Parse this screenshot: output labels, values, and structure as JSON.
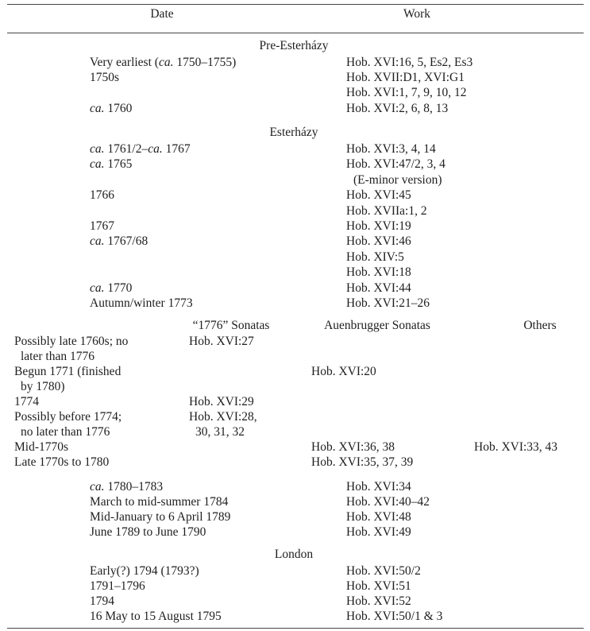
{
  "header": {
    "date": "Date",
    "work": "Work"
  },
  "sections": [
    {
      "title": "Pre-Esterházy",
      "rows": [
        [
          "Very earliest (ca. 1750–1755)",
          "Hob. XVI:16, 5, Es2, Es3"
        ],
        [
          "1750s",
          "Hob. XVII:D1, XVI:G1"
        ],
        [
          "",
          "Hob. XVI:1, 7, 9, 10, 12"
        ],
        [
          "ca. 1760",
          "Hob. XVI:2, 6, 8, 13"
        ]
      ]
    },
    {
      "title": "Esterházy",
      "rows": [
        [
          "ca. 1761/2–ca. 1767",
          "Hob. XVI:3, 4, 14"
        ],
        [
          "ca. 1765",
          "Hob. XVI:47/2, 3, 4"
        ],
        [
          "",
          "(E-minor version)"
        ],
        [
          "1766",
          "Hob. XVI:45"
        ],
        [
          "",
          "Hob. XVIIa:1, 2"
        ],
        [
          "1767",
          "Hob. XVI:19"
        ],
        [
          "ca. 1767/68",
          "Hob. XVI:46"
        ],
        [
          "",
          "Hob. XIV:5"
        ],
        [
          "",
          "Hob. XVI:18"
        ],
        [
          "ca. 1770",
          "Hob. XVI:44"
        ],
        [
          "Autumn/winter 1773",
          "Hob. XVI:21–26"
        ]
      ]
    }
  ],
  "subtable": {
    "headers": [
      "“1776” Sonatas",
      "Auenbrugger Sonatas",
      "Others"
    ],
    "rows": [
      [
        "Possibly late 1760s; no",
        "Hob. XVI:27",
        "",
        ""
      ],
      [
        "later than 1776",
        "",
        "",
        ""
      ],
      [
        "Begun 1771 (finished",
        "",
        "Hob. XVI:20",
        ""
      ],
      [
        "by 1780)",
        "",
        "",
        ""
      ],
      [
        "1774",
        "Hob. XVI:29",
        "",
        ""
      ],
      [
        "Possibly before 1774;",
        "Hob. XVI:28,",
        "",
        ""
      ],
      [
        "no later than 1776",
        "30, 31, 32",
        "",
        ""
      ],
      [
        "Mid-1770s",
        "",
        "Hob. XVI:36, 38",
        "Hob. XVI:33, 43"
      ],
      [
        "Late 1770s to 1780",
        "",
        "Hob. XVI:35, 37, 39",
        ""
      ]
    ]
  },
  "late_rows": [
    [
      "ca. 1780–1783",
      "Hob. XVI:34"
    ],
    [
      "March to mid-summer 1784",
      "Hob. XVI:40–42"
    ],
    [
      "Mid-January to 6 April 1789",
      "Hob. XVI:48"
    ],
    [
      "June 1789 to June 1790",
      "Hob. XVI:49"
    ]
  ],
  "london": {
    "title": "London",
    "rows": [
      [
        "Early(?) 1794 (1793?)",
        "Hob. XVI:50/2"
      ],
      [
        "1791–1796",
        "Hob. XVI:51"
      ],
      [
        "1794",
        "Hob. XVI:52"
      ],
      [
        "16 May to 15 August 1795",
        "Hob. XVI:50/1 & 3"
      ]
    ]
  }
}
